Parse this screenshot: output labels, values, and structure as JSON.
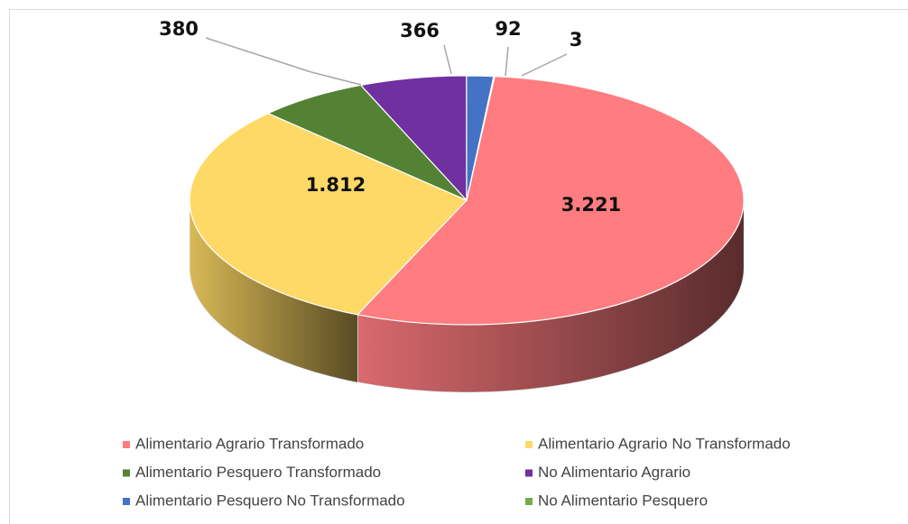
{
  "chart_data": {
    "type": "pie",
    "categories": [
      "Alimentario Agrario Transformado",
      "Alimentario Agrario No Transformado",
      "Alimentario Pesquero Transformado",
      "No Alimentario Agrario",
      "Alimentario Pesquero No Transformado",
      "No Alimentario Pesquero"
    ],
    "values": [
      3221,
      1812,
      380,
      366,
      92,
      3
    ],
    "value_labels": [
      "3.221",
      "1.812",
      "380",
      "366",
      "92",
      "3"
    ],
    "colors": [
      "#ff7c80",
      "#ffd966",
      "#548235",
      "#7030a0",
      "#4472c4",
      "#70ad47"
    ]
  }
}
